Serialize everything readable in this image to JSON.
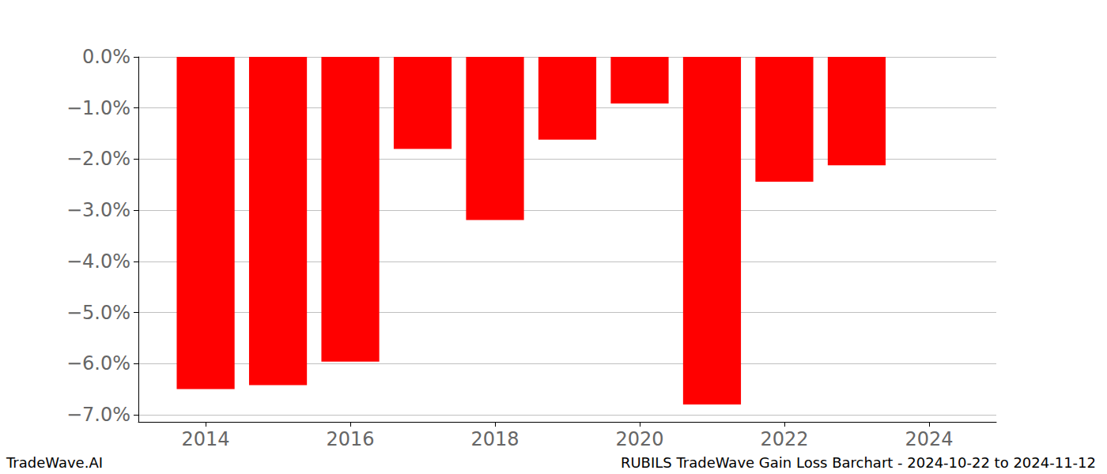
{
  "chart_data": {
    "type": "bar",
    "title": "RUBILS TradeWave Gain Loss Barchart - 2024-10-22 to 2024-11-12",
    "annotations": [
      "TradeWave.AI"
    ],
    "x": [
      2014,
      2015,
      2016,
      2017,
      2018,
      2019,
      2020,
      2021,
      2022,
      2023
    ],
    "values": [
      -6.5,
      -6.42,
      -5.96,
      -1.8,
      -3.19,
      -1.62,
      -0.91,
      -6.8,
      -2.44,
      -2.12
    ],
    "color": "#ff0000",
    "xlim": [
      2013.07,
      2024.93
    ],
    "xticks": [
      2014,
      2016,
      2018,
      2020,
      2022,
      2024
    ],
    "ylim": [
      -7.14,
      0
    ],
    "yticks": [
      {
        "value": 0,
        "label": "0.0%"
      },
      {
        "value": -1,
        "label": "−1.0%"
      },
      {
        "value": -2,
        "label": "−2.0%"
      },
      {
        "value": -3,
        "label": "−3.0%"
      },
      {
        "value": -4,
        "label": "−4.0%"
      },
      {
        "value": -5,
        "label": "−5.0%"
      },
      {
        "value": -6,
        "label": "−6.0%"
      },
      {
        "value": -7,
        "label": "−7.0%"
      }
    ],
    "grid": true
  }
}
